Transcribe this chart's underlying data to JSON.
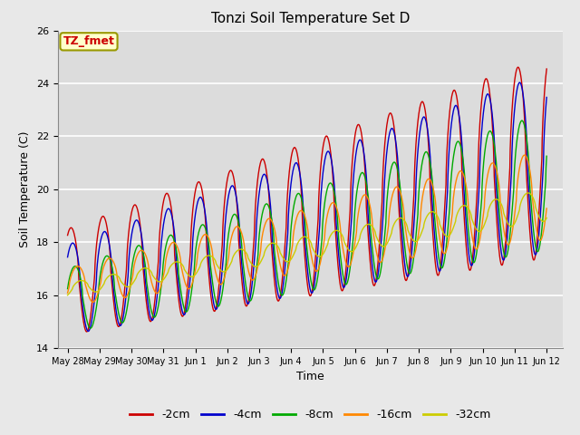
{
  "title": "Tonzi Soil Temperature Set D",
  "xlabel": "Time",
  "ylabel": "Soil Temperature (C)",
  "ylim": [
    14,
    26
  ],
  "background_color": "#dcdcdc",
  "plot_bg_color": "#dcdcdc",
  "legend_label": "TZ_fmet",
  "legend_box_color": "#ffffcc",
  "legend_box_edge": "#999900",
  "series_colors": [
    "#cc0000",
    "#0000cc",
    "#00aa00",
    "#ff8800",
    "#cccc00"
  ],
  "series_labels": [
    "-2cm",
    "-4cm",
    "-8cm",
    "-16cm",
    "-32cm"
  ],
  "tick_labels": [
    "May 28",
    "May 29",
    "May 30",
    "May 31",
    "Jun 1",
    "Jun 2",
    "Jun 3",
    "Jun 4",
    "Jun 5",
    "Jun 6",
    "Jun 7",
    "Jun 8",
    "Jun 9",
    "Jun 10",
    "Jun 11",
    "Jun 12"
  ],
  "tick_positions": [
    0,
    1,
    2,
    3,
    4,
    5,
    6,
    7,
    8,
    9,
    10,
    11,
    12,
    13,
    14,
    15
  ],
  "yticks": [
    14,
    16,
    18,
    20,
    22,
    24,
    26
  ]
}
